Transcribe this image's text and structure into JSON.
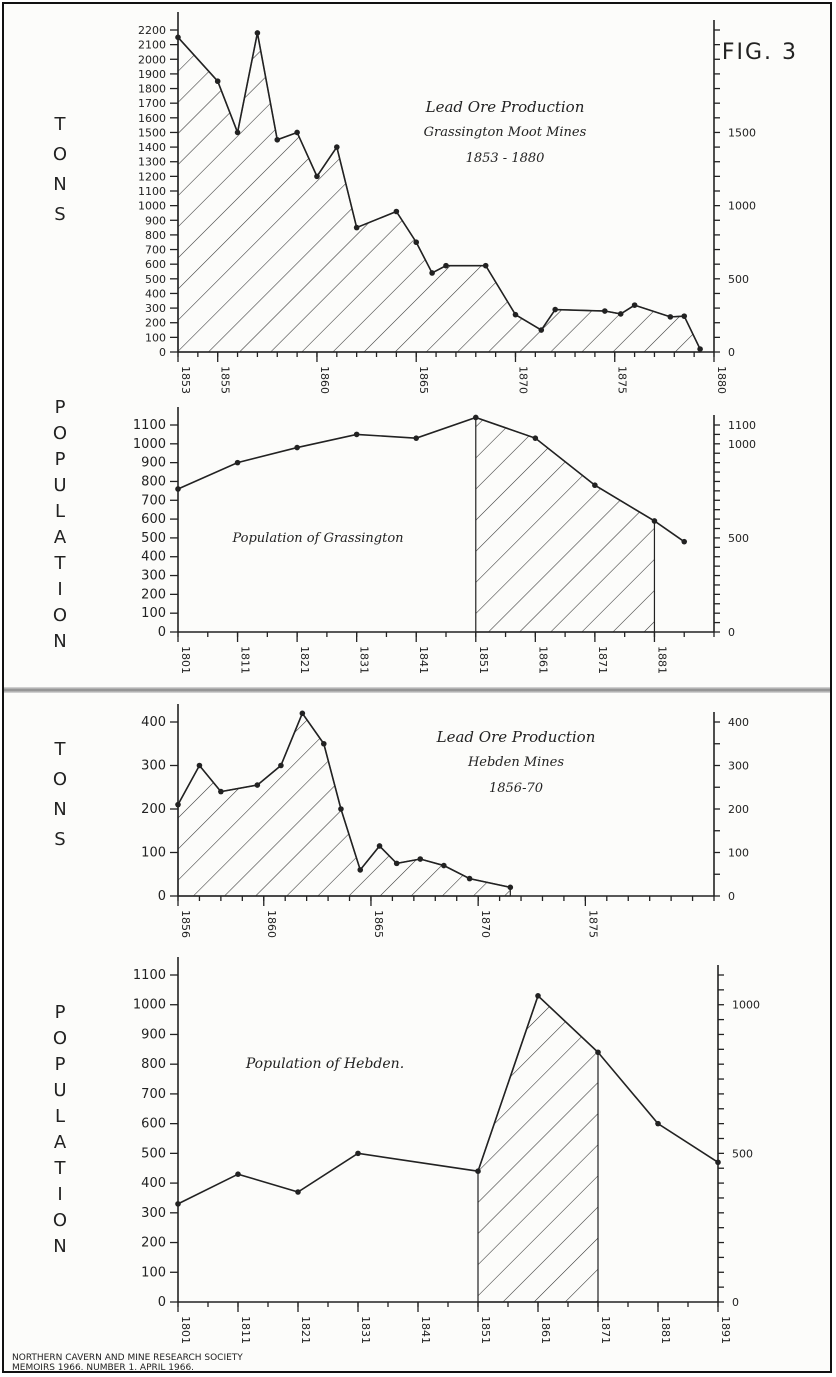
{
  "figure_label": "FIG. 3",
  "footer": {
    "line1": "NORTHERN CAVERN AND MINE RESEARCH SOCIETY",
    "line2": "MEMOIRS 1966. NUMBER 1. APRIL 1966."
  },
  "chart_data": [
    {
      "type": "area",
      "title": "Lead Ore Production",
      "subtitle": "Grassington Moot Mines",
      "subtitle2": "1853 - 1880",
      "ylabel": "TONS",
      "xlabel": "",
      "xlim": [
        1853,
        1880
      ],
      "ylim": [
        0,
        2200
      ],
      "left_ticks": [
        0,
        100,
        200,
        300,
        400,
        500,
        600,
        700,
        800,
        900,
        1000,
        1100,
        1200,
        1300,
        1400,
        1500,
        1600,
        1700,
        1800,
        1900,
        2000,
        2100,
        2200
      ],
      "right_ticks": [
        0,
        500,
        1000,
        1500
      ],
      "x_tick_labels": [
        1853,
        1855,
        1860,
        1865,
        1870,
        1875,
        1880
      ],
      "shading": "full",
      "x": [
        1853,
        1855,
        1856,
        1857,
        1858,
        1859,
        1860,
        1861,
        1862,
        1864,
        1865,
        1865.8,
        1866.5,
        1868.5,
        1870,
        1871.3,
        1872,
        1874.5,
        1875.3,
        1876,
        1877.8,
        1878.5,
        1879.3
      ],
      "values": [
        2150,
        1850,
        1500,
        2180,
        1450,
        1500,
        1200,
        1400,
        850,
        960,
        750,
        540,
        590,
        590,
        255,
        150,
        290,
        280,
        260,
        320,
        240,
        245,
        20
      ]
    },
    {
      "type": "area",
      "title": "Population of Grassington",
      "ylabel": "POPULATION",
      "xlabel": "",
      "xlim": [
        1801,
        1891
      ],
      "ylim": [
        0,
        1100
      ],
      "left_ticks": [
        0,
        100,
        200,
        300,
        400,
        500,
        600,
        700,
        800,
        900,
        1000,
        1100
      ],
      "right_ticks": [
        0,
        500,
        1000,
        1100
      ],
      "x_tick_labels": [
        1801,
        1811,
        1821,
        1831,
        1841,
        1851,
        1861,
        1871,
        1881
      ],
      "shading": [
        1851,
        1881
      ],
      "x": [
        1801,
        1811,
        1821,
        1831,
        1841,
        1851,
        1861,
        1871,
        1881,
        1886
      ],
      "values": [
        760,
        900,
        980,
        1050,
        1030,
        1140,
        1030,
        780,
        590,
        480
      ]
    },
    {
      "type": "area",
      "title": "Lead Ore Production",
      "subtitle": "Hebden Mines",
      "subtitle2": "1856-70",
      "ylabel": "TONS",
      "xlabel": "",
      "xlim": [
        1856,
        1881
      ],
      "ylim": [
        0,
        400
      ],
      "left_ticks": [
        0,
        100,
        200,
        300,
        400
      ],
      "right_ticks": [
        0,
        100,
        200,
        300,
        400
      ],
      "x_tick_labels": [
        1856,
        1860,
        1865,
        1870,
        1875
      ],
      "shading": "full",
      "x": [
        1856,
        1857,
        1858,
        1859.7,
        1860.8,
        1861.8,
        1862.8,
        1863.6,
        1864.5,
        1865.4,
        1866.2,
        1867.3,
        1868.4,
        1869.6,
        1871.5
      ],
      "values": [
        210,
        300,
        240,
        255,
        300,
        420,
        350,
        200,
        60,
        115,
        75,
        85,
        70,
        40,
        20
      ]
    },
    {
      "type": "area",
      "title": "Population of Hebden.",
      "ylabel": "POPULATION",
      "xlabel": "",
      "xlim": [
        1801,
        1891
      ],
      "ylim": [
        0,
        1100
      ],
      "left_ticks": [
        0,
        100,
        200,
        300,
        400,
        500,
        600,
        700,
        800,
        900,
        1000,
        1100
      ],
      "right_ticks": [
        0,
        500,
        1000
      ],
      "x_tick_labels": [
        1801,
        1811,
        1821,
        1831,
        1841,
        1851,
        1861,
        1871,
        1881,
        1891
      ],
      "shading": [
        1851,
        1871
      ],
      "x": [
        1801,
        1811,
        1821,
        1831,
        1851,
        1861,
        1871,
        1881,
        1891
      ],
      "values": [
        330,
        430,
        370,
        500,
        440,
        1030,
        840,
        600,
        470
      ]
    }
  ]
}
